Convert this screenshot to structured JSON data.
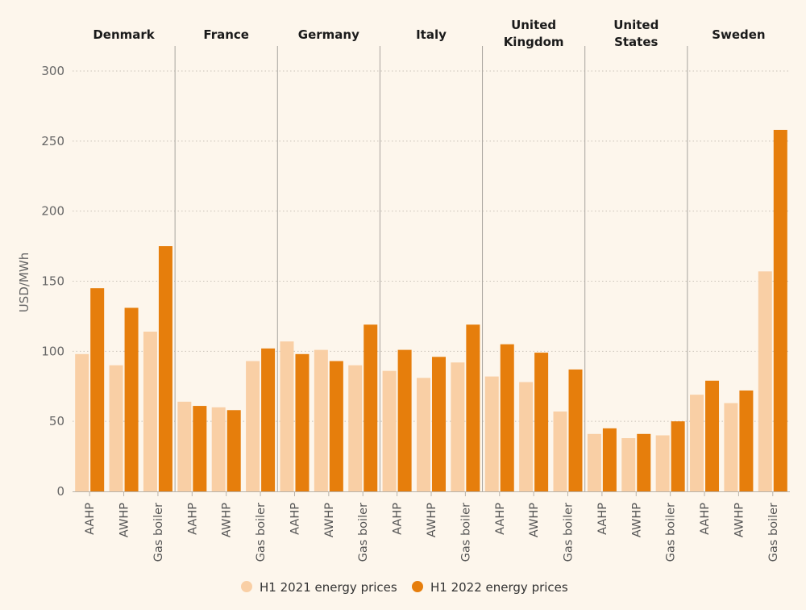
{
  "colors": {
    "h1_2021": "#f9cfa5",
    "h1_2022": "#e67e0c",
    "grid": "#c9c2b8",
    "separator": "#a8a49e",
    "axis": "#b8b2aa"
  },
  "chart_data": {
    "type": "bar",
    "ylabel": "USD/MWh",
    "ylim": [
      0,
      300
    ],
    "yticks": [
      0,
      50,
      100,
      150,
      200,
      250,
      300
    ],
    "grid": "horizontal dotted",
    "legend_position": "bottom-center",
    "subcategories": [
      "AAHP",
      "AWHP",
      "Gas boiler"
    ],
    "series": [
      {
        "name": "H1 2021 energy prices",
        "key": "h1_2021"
      },
      {
        "name": "H1 2022 energy prices",
        "key": "h1_2022"
      }
    ],
    "groups": [
      {
        "name_lines": [
          "Denmark"
        ],
        "h1_2021": [
          98,
          90,
          114
        ],
        "h1_2022": [
          145,
          131,
          175
        ]
      },
      {
        "name_lines": [
          "France"
        ],
        "h1_2021": [
          64,
          60,
          93
        ],
        "h1_2022": [
          61,
          58,
          102
        ]
      },
      {
        "name_lines": [
          "Germany"
        ],
        "h1_2021": [
          107,
          101,
          90
        ],
        "h1_2022": [
          98,
          93,
          119
        ]
      },
      {
        "name_lines": [
          "Italy"
        ],
        "h1_2021": [
          86,
          81,
          92
        ],
        "h1_2022": [
          101,
          96,
          119
        ]
      },
      {
        "name_lines": [
          "United",
          "Kingdom"
        ],
        "h1_2021": [
          82,
          78,
          57
        ],
        "h1_2022": [
          105,
          99,
          87
        ]
      },
      {
        "name_lines": [
          "United",
          "States"
        ],
        "h1_2021": [
          41,
          38,
          40
        ],
        "h1_2022": [
          45,
          41,
          50
        ]
      },
      {
        "name_lines": [
          "Sweden"
        ],
        "h1_2021": [
          69,
          63,
          157
        ],
        "h1_2022": [
          79,
          72,
          258
        ]
      }
    ]
  }
}
